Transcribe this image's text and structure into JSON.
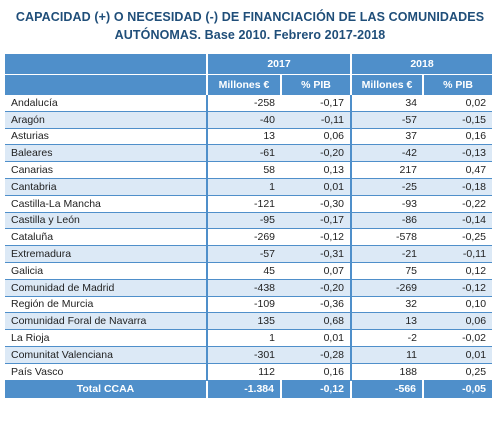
{
  "title": {
    "line1": "CAPACIDAD (+) O NECESIDAD (-) DE FINANCIACIÓN DE LAS COMUNIDADES",
    "line2": "AUTÓNOMAS. Base 2010. Febrero 2017-2018"
  },
  "table": {
    "years": [
      "2017",
      "2018"
    ],
    "subheaders": [
      "Millones €",
      "% PIB",
      "Millones €",
      "% PIB"
    ],
    "rows": [
      {
        "name": "Andalucía",
        "v": [
          "-258",
          "-0,17",
          "34",
          "0,02"
        ]
      },
      {
        "name": "Aragón",
        "v": [
          "-40",
          "-0,11",
          "-57",
          "-0,15"
        ]
      },
      {
        "name": "Asturias",
        "v": [
          "13",
          "0,06",
          "37",
          "0,16"
        ]
      },
      {
        "name": "Baleares",
        "v": [
          "-61",
          "-0,20",
          "-42",
          "-0,13"
        ]
      },
      {
        "name": "Canarias",
        "v": [
          "58",
          "0,13",
          "217",
          "0,47"
        ]
      },
      {
        "name": "Cantabria",
        "v": [
          "1",
          "0,01",
          "-25",
          "-0,18"
        ]
      },
      {
        "name": "Castilla-La Mancha",
        "v": [
          "-121",
          "-0,30",
          "-93",
          "-0,22"
        ]
      },
      {
        "name": "Castilla y León",
        "v": [
          "-95",
          "-0,17",
          "-86",
          "-0,14"
        ]
      },
      {
        "name": "Cataluña",
        "v": [
          "-269",
          "-0,12",
          "-578",
          "-0,25"
        ]
      },
      {
        "name": "Extremadura",
        "v": [
          "-57",
          "-0,31",
          "-21",
          "-0,11"
        ]
      },
      {
        "name": "Galicia",
        "v": [
          "45",
          "0,07",
          "75",
          "0,12"
        ]
      },
      {
        "name": "Comunidad de Madrid",
        "v": [
          "-438",
          "-0,20",
          "-269",
          "-0,12"
        ]
      },
      {
        "name": "Región de Murcia",
        "v": [
          "-109",
          "-0,36",
          "32",
          "0,10"
        ]
      },
      {
        "name": "Comunidad Foral de Navarra",
        "v": [
          "135",
          "0,68",
          "13",
          "0,06"
        ]
      },
      {
        "name": "La Rioja",
        "v": [
          "1",
          "0,01",
          "-2",
          "-0,02"
        ]
      },
      {
        "name": "Comunitat Valenciana",
        "v": [
          "-301",
          "-0,28",
          "11",
          "0,01"
        ]
      },
      {
        "name": "País Vasco",
        "v": [
          "112",
          "0,16",
          "188",
          "0,25"
        ]
      }
    ],
    "total": {
      "name": "Total CCAA",
      "v": [
        "-1.384",
        "-0,12",
        "-566",
        "-0,05"
      ]
    }
  },
  "colors": {
    "header_bg": "#4f8fca",
    "alt_row_bg": "#dce9f6",
    "title": "#1f4e79"
  }
}
